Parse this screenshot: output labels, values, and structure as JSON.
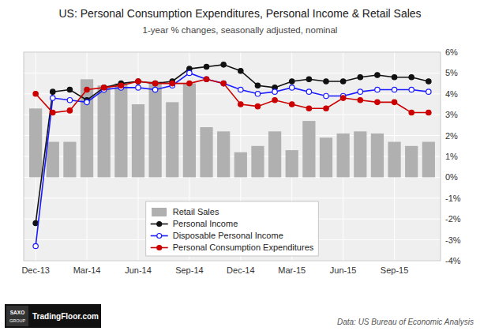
{
  "chart_data": {
    "type": "bar",
    "title": "US: Personal Consumption Expenditures,  Personal Income & Retail Sales",
    "subtitle": "1-year % changes, seasonally adjusted,  nominal",
    "source": "Data: US Bureau of Economic Analysis",
    "annotations": [
      "SAXO",
      "GROUP",
      "TradingFloor.com"
    ],
    "categories": [
      "Dec-13",
      null,
      null,
      "Mar-14",
      null,
      null,
      "Jun-14",
      null,
      null,
      "Sep-14",
      null,
      null,
      "Dec-14",
      null,
      null,
      "Mar-15",
      null,
      null,
      "Jun-15",
      null,
      null,
      "Sep-15",
      null,
      null
    ],
    "series": [
      {
        "name": "Retail Sales",
        "type": "bar",
        "color": "#b0b0b0",
        "values": [
          3.3,
          1.7,
          1.7,
          4.7,
          4.4,
          4.5,
          3.5,
          4.6,
          3.6,
          4.5,
          2.4,
          2.2,
          1.2,
          1.5,
          2.2,
          1.3,
          2.7,
          1.9,
          2.1,
          2.2,
          2.1,
          1.7,
          1.5,
          1.7
        ]
      },
      {
        "name": "Personal Income",
        "type": "line",
        "color": "#111111",
        "marker": "circle",
        "values": [
          -2.2,
          4.1,
          4.2,
          3.7,
          4.3,
          4.5,
          4.6,
          4.5,
          4.6,
          5.2,
          5.3,
          5.4,
          5.1,
          4.4,
          4.3,
          4.6,
          4.7,
          4.6,
          4.6,
          4.8,
          4.9,
          4.8,
          4.8,
          4.6
        ]
      },
      {
        "name": "Disposable Personal Income",
        "type": "line",
        "color": "#1a1aff",
        "marker": "open-circle",
        "values": [
          -3.3,
          3.8,
          3.7,
          3.6,
          4.2,
          4.3,
          4.3,
          4.2,
          4.4,
          5.0,
          4.7,
          4.5,
          4.2,
          4.0,
          4.1,
          4.3,
          4.1,
          3.9,
          3.9,
          4.1,
          4.2,
          4.2,
          4.2,
          4.1
        ]
      },
      {
        "name": "Personal Consumption Expenditures",
        "type": "line",
        "color": "#cc0000",
        "marker": "circle",
        "values": [
          4.0,
          3.1,
          3.2,
          4.2,
          4.3,
          4.4,
          4.6,
          4.5,
          4.5,
          4.5,
          4.7,
          4.5,
          3.5,
          3.4,
          3.7,
          3.5,
          3.3,
          3.3,
          3.8,
          3.7,
          3.6,
          3.6,
          3.1,
          3.1
        ]
      }
    ],
    "ylim": [
      -4,
      6
    ],
    "yticks": [
      {
        "value": -4,
        "label": "-4%"
      },
      {
        "value": -3,
        "label": "-3%"
      },
      {
        "value": -2,
        "label": "-2%"
      },
      {
        "value": -1,
        "label": "-1%"
      },
      {
        "value": 0,
        "label": "0%"
      },
      {
        "value": 1,
        "label": "1%"
      },
      {
        "value": 2,
        "label": "2%"
      },
      {
        "value": 3,
        "label": "3%"
      },
      {
        "value": 4,
        "label": "4%"
      },
      {
        "value": 5,
        "label": "5%"
      },
      {
        "value": 6,
        "label": "6%"
      }
    ],
    "grid": true,
    "legend": "lower center"
  }
}
